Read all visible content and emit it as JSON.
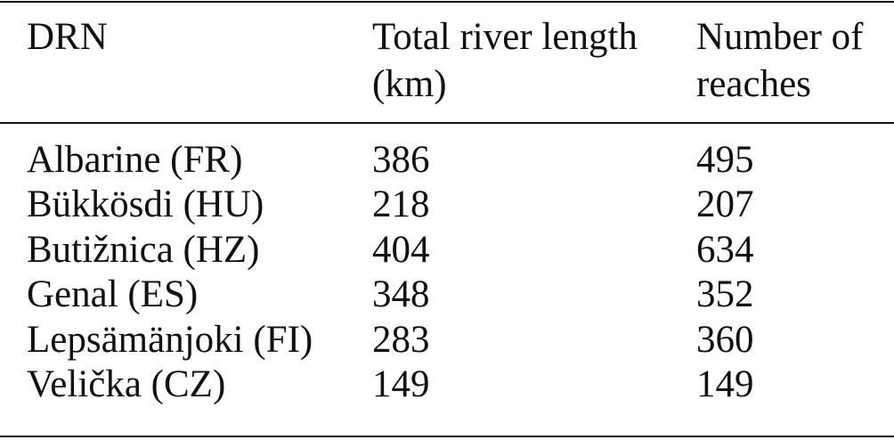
{
  "table": {
    "header": [
      "DRN",
      "Total river length (km)",
      "Number of reaches"
    ],
    "rows": [
      [
        "Albarine (FR)",
        386,
        495
      ],
      [
        "Bükkösdi (HU)",
        218,
        207
      ],
      [
        "Butižnica (HZ)",
        404,
        634
      ],
      [
        "Genal (ES)",
        348,
        352
      ],
      [
        "Lepsämänjoki (FI)",
        283,
        360
      ],
      [
        "Velička (CZ)",
        149,
        149
      ]
    ]
  }
}
